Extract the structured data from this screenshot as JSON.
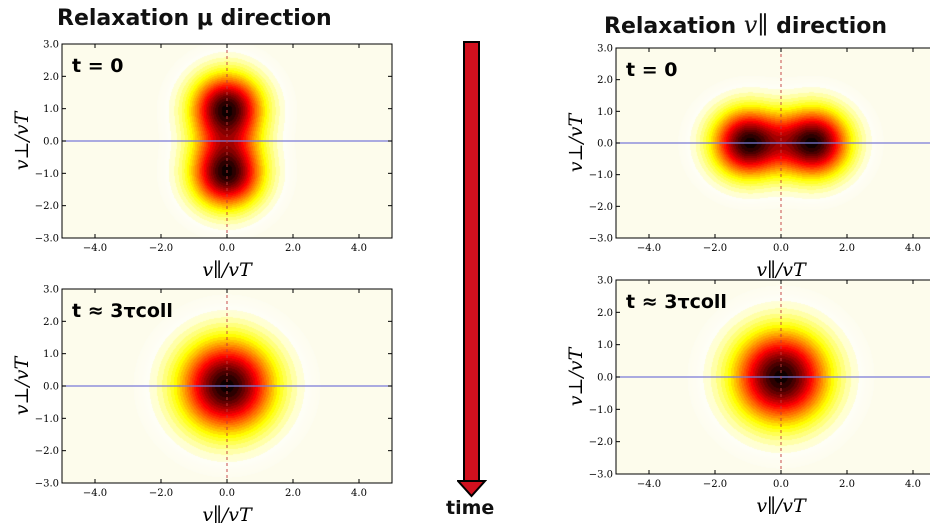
{
  "titles": {
    "left_prefix": "Relaxation",
    "left_symbol": "μ",
    "left_suffix": "direction",
    "right_prefix": "Relaxation",
    "right_symbol": "v∥",
    "right_suffix": "direction"
  },
  "time_arrow": {
    "label": "time",
    "color": "#d0101e"
  },
  "colormap": "hot",
  "chart_data": [
    {
      "type": "heatmap",
      "label": "t = 0",
      "xlabel": "v∥/vT",
      "ylabel": "v⊥/vT",
      "xlim": [
        -5,
        5
      ],
      "ylim": [
        -3,
        3
      ],
      "xticks": [
        "−4.0",
        "−2.0",
        "0.0",
        "2.0",
        "4.0"
      ],
      "yticks": [
        "−3.0",
        "−2.0",
        "−1.0",
        "0.0",
        "1.0",
        "2.0",
        "3.0"
      ],
      "peaks": [
        [
          0,
          1
        ],
        [
          0,
          -1
        ]
      ]
    },
    {
      "type": "heatmap",
      "label": "t ≈ 3τcoll",
      "xlabel": "v∥/vT",
      "ylabel": "v⊥/vT",
      "xlim": [
        -5,
        5
      ],
      "ylim": [
        -3,
        3
      ],
      "xticks": [
        "−4.0",
        "−2.0",
        "0.0",
        "2.0",
        "4.0"
      ],
      "yticks": [
        "−3.0",
        "−2.0",
        "−1.0",
        "0.0",
        "1.0",
        "2.0",
        "3.0"
      ],
      "peaks": [
        [
          0,
          0
        ]
      ]
    },
    {
      "type": "heatmap",
      "label": "t = 0",
      "xlabel": "v∥/vT",
      "ylabel": "v⊥/vT",
      "xlim": [
        -5,
        5
      ],
      "ylim": [
        -3,
        3
      ],
      "xticks": [
        "−4.0",
        "−2.0",
        "0.0",
        "2.0",
        "4.0"
      ],
      "yticks": [
        "−3.0",
        "−2.0",
        "−1.0",
        "0.0",
        "1.0",
        "2.0",
        "3.0"
      ],
      "peaks": [
        [
          -1,
          0
        ],
        [
          1,
          0
        ]
      ]
    },
    {
      "type": "heatmap",
      "label": "t ≈ 3τcoll",
      "xlabel": "v∥/vT",
      "ylabel": "v⊥/vT",
      "xlim": [
        -5,
        5
      ],
      "ylim": [
        -3,
        3
      ],
      "xticks": [
        "−4.0",
        "−2.0",
        "0.0",
        "2.0",
        "4.0"
      ],
      "yticks": [
        "−3.0",
        "−2.0",
        "−1.0",
        "0.0",
        "1.0",
        "2.0",
        "3.0"
      ],
      "peaks": [
        [
          0,
          0
        ]
      ]
    }
  ]
}
